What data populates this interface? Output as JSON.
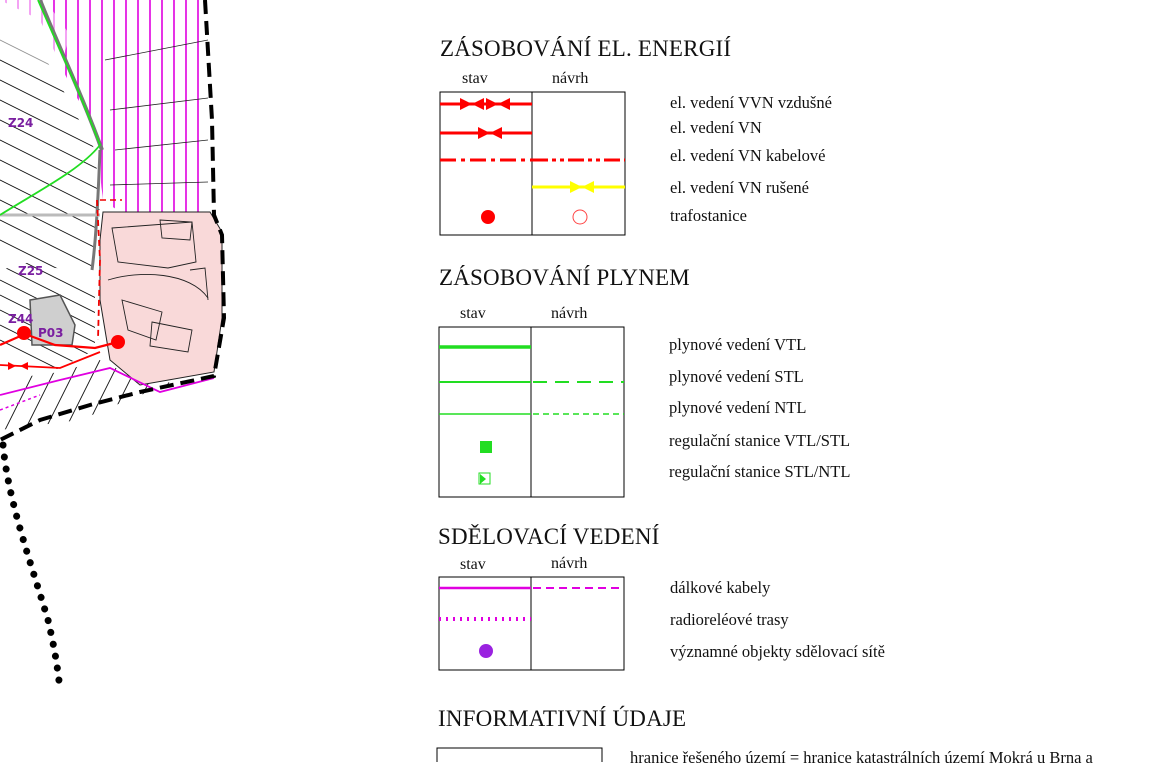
{
  "map": {
    "labels": {
      "z24": "Z24",
      "z25": "Z25",
      "z44": "Z44",
      "p03": "P03"
    },
    "colors": {
      "boundary": "#000000",
      "power": "#ff0000",
      "gas": "#00dd00",
      "telecom": "#e000e0",
      "builtup": "#f9d9d9"
    }
  },
  "legend": {
    "columns": {
      "stav": "stav",
      "navrh": "návrh"
    },
    "sections": [
      {
        "title": "ZÁSOBOVÁNÍ EL. ENERGIÍ",
        "items": [
          "el. vedení VVN vzdušné",
          "el. vedení VN",
          "el. vedení VN kabelové",
          "el. vedení VN rušené",
          "trafostanice"
        ]
      },
      {
        "title": "ZÁSOBOVÁNÍ PLYNEM",
        "items": [
          "plynové vedení VTL",
          "plynové vedení STL",
          "plynové vedení NTL",
          "regulační stanice VTL/STL",
          "regulační stanice STL/NTL"
        ]
      },
      {
        "title": "SDĚLOVACÍ VEDENÍ",
        "items": [
          "dálkové kabely",
          "radioreléové trasy",
          "významné objekty sdělovací sítě"
        ]
      },
      {
        "title": "INFORMATIVNÍ ÚDAJE",
        "items": [
          "hranice řešeného území = hranice katastrálních území Mokrá u Brna a"
        ]
      }
    ]
  }
}
